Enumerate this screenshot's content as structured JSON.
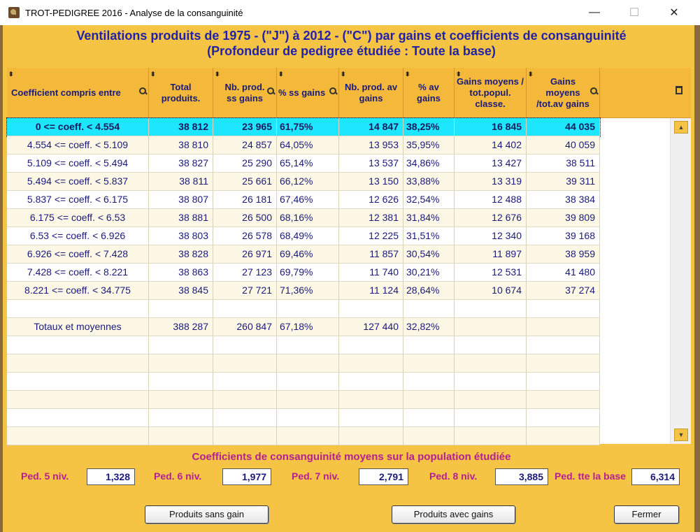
{
  "window": {
    "title": "TROT-PEDIGREE 2016  -  Analyse de la consanguinité",
    "minimize": "—",
    "maximize": "☐",
    "close": "✕"
  },
  "heading": {
    "line1": "Ventilations produits  de 1975 - (\"J\") à 2012 - (\"C\") par gains et  coefficients de consanguinité",
    "line2": "(Profondeur de pedigree étudiée : Toute la base)"
  },
  "table": {
    "columns": [
      "Coefficient compris entre",
      "Total produits.",
      "Nb. prod. ss gains",
      "% ss gains",
      "Nb. prod. av gains",
      "% av gains",
      "Gains moyens / tot.popul. classe.",
      "Gains moyens /tot.av gains"
    ],
    "rows": [
      [
        "0 <= coeff. < 4.554",
        "38 812",
        "23 965",
        "61,75%",
        "14 847",
        "38,25%",
        "16 845",
        "44 035"
      ],
      [
        "4.554 <= coeff. < 5.109",
        "38 810",
        "24 857",
        "64,05%",
        "13 953",
        "35,95%",
        "14 402",
        "40 059"
      ],
      [
        "5.109 <= coeff. < 5.494",
        "38 827",
        "25 290",
        "65,14%",
        "13 537",
        "34,86%",
        "13 427",
        "38 511"
      ],
      [
        "5.494 <= coeff. < 5.837",
        "38 811",
        "25 661",
        "66,12%",
        "13 150",
        "33,88%",
        "13 319",
        "39 311"
      ],
      [
        "5.837 <= coeff. < 6.175",
        "38 807",
        "26 181",
        "67,46%",
        "12 626",
        "32,54%",
        "12 488",
        "38 384"
      ],
      [
        "6.175 <= coeff. < 6.53",
        "38 881",
        "26 500",
        "68,16%",
        "12 381",
        "31,84%",
        "12 676",
        "39 809"
      ],
      [
        "6.53 <= coeff. < 6.926",
        "38 803",
        "26 578",
        "68,49%",
        "12 225",
        "31,51%",
        "12 340",
        "39 168"
      ],
      [
        "6.926 <= coeff. < 7.428",
        "38 828",
        "26 971",
        "69,46%",
        "11 857",
        "30,54%",
        "11 897",
        "38 959"
      ],
      [
        "7.428 <= coeff. < 8.221",
        "38 863",
        "27 123",
        "69,79%",
        "11 740",
        "30,21%",
        "12 531",
        "41 480"
      ],
      [
        "8.221 <= coeff. < 34.775",
        "38 845",
        "27 721",
        "71,36%",
        "11 124",
        "28,64%",
        "10 674",
        "37 274"
      ],
      [
        "",
        "",
        "",
        "",
        "",
        "",
        "",
        ""
      ],
      [
        "Totaux et moyennes",
        "388 287",
        "260 847",
        "67,18%",
        "127 440",
        "32,82%",
        "",
        ""
      ],
      [
        "",
        "",
        "",
        "",
        "",
        "",
        "",
        ""
      ],
      [
        "",
        "",
        "",
        "",
        "",
        "",
        "",
        ""
      ],
      [
        "",
        "",
        "",
        "",
        "",
        "",
        "",
        ""
      ],
      [
        "",
        "",
        "",
        "",
        "",
        "",
        "",
        ""
      ],
      [
        "",
        "",
        "",
        "",
        "",
        "",
        "",
        ""
      ],
      [
        "",
        "",
        "",
        "",
        "",
        "",
        "",
        ""
      ]
    ]
  },
  "summary": {
    "title": "Coefficients de consanguinité moyens sur la population étudiée",
    "items": [
      {
        "label": "Ped. 5 niv.",
        "value": "1,328"
      },
      {
        "label": "Ped. 6 niv.",
        "value": "1,977"
      },
      {
        "label": "Ped. 7 niv.",
        "value": "2,791"
      },
      {
        "label": "Ped. 8 niv.",
        "value": "3,885"
      },
      {
        "label": "Ped. tte la base",
        "value": "6,314"
      }
    ]
  },
  "buttons": {
    "sans_gain": "Produits sans gain",
    "avec_gains": "Produits avec gains",
    "fermer": "Fermer"
  },
  "colors": {
    "background": "#f5c445",
    "header": "#f4b83a",
    "selected_row": "#1ee6ff",
    "heading_text": "#2222a8",
    "summary_text": "#b41e96"
  }
}
